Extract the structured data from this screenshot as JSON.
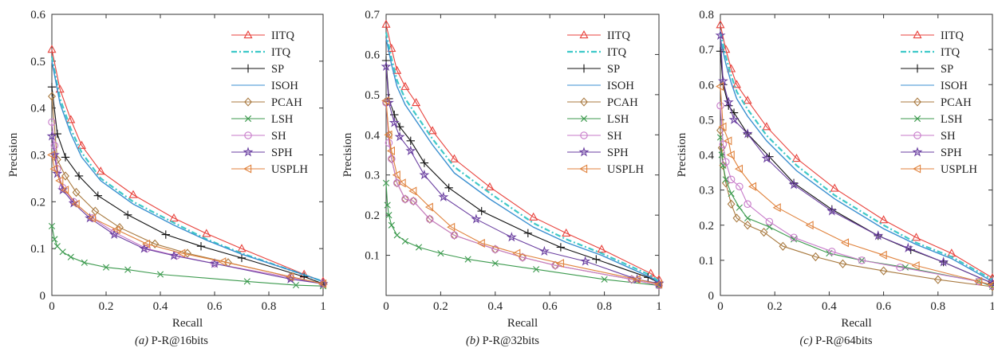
{
  "series_styles": [
    {
      "name": "IITQ",
      "color": "#e8423c",
      "marker": "triangle-up",
      "dash": ""
    },
    {
      "name": "ITQ",
      "color": "#3ec8c8",
      "marker": "none",
      "dash": "7,3,2,3"
    },
    {
      "name": "SP",
      "color": "#111111",
      "marker": "plus",
      "dash": ""
    },
    {
      "name": "ISOH",
      "color": "#3a8fd0",
      "marker": "none",
      "dash": ""
    },
    {
      "name": "PCAH",
      "color": "#a8793f",
      "marker": "diamond",
      "dash": ""
    },
    {
      "name": "LSH",
      "color": "#3c9a4e",
      "marker": "x",
      "dash": ""
    },
    {
      "name": "SH",
      "color": "#c77ac9",
      "marker": "circle",
      "dash": ""
    },
    {
      "name": "SPH",
      "color": "#6a3fa0",
      "marker": "star",
      "dash": ""
    },
    {
      "name": "USPLH",
      "color": "#e0823c",
      "marker": "triangle-left",
      "dash": ""
    }
  ],
  "chart_data": [
    {
      "type": "line",
      "caption_prefix": "(a)",
      "caption_text": "P-R@16bits",
      "xlabel": "Recall",
      "ylabel": "Precision",
      "xlim": [
        0,
        1
      ],
      "ylim": [
        0,
        0.6
      ],
      "xticks": [
        0,
        0.2,
        0.4,
        0.6,
        0.8,
        1
      ],
      "xtick_labels": [
        "0",
        "0.2",
        "0.4",
        "0.6",
        "0.8",
        "1"
      ],
      "yticks": [
        0,
        0.1,
        0.2,
        0.3,
        0.4,
        0.5,
        0.6
      ],
      "ytick_labels": [
        "0",
        "0.1",
        "0.2",
        "0.3",
        "0.4",
        "0.5",
        "0.6"
      ],
      "legend": "top-right",
      "series": [
        {
          "name": "IITQ",
          "x": [
            0,
            0.03,
            0.07,
            0.11,
            0.18,
            0.3,
            0.45,
            0.57,
            0.7,
            0.93,
            1
          ],
          "y": [
            0.525,
            0.44,
            0.375,
            0.32,
            0.265,
            0.215,
            0.165,
            0.132,
            0.1,
            0.045,
            0.03
          ]
        },
        {
          "name": "ITQ",
          "x": [
            0,
            0.03,
            0.07,
            0.11,
            0.18,
            0.3,
            0.45,
            0.57,
            0.7,
            0.9,
            1
          ],
          "y": [
            0.51,
            0.42,
            0.355,
            0.305,
            0.25,
            0.2,
            0.155,
            0.12,
            0.09,
            0.05,
            0.03
          ]
        },
        {
          "name": "SP",
          "x": [
            0,
            0.02,
            0.05,
            0.1,
            0.17,
            0.28,
            0.42,
            0.55,
            0.7,
            0.93,
            1
          ],
          "y": [
            0.445,
            0.345,
            0.295,
            0.255,
            0.213,
            0.172,
            0.13,
            0.105,
            0.08,
            0.04,
            0.025
          ]
        },
        {
          "name": "ISOH",
          "x": [
            0,
            0.03,
            0.07,
            0.11,
            0.18,
            0.3,
            0.45,
            0.57,
            0.7,
            0.9,
            1
          ],
          "y": [
            0.5,
            0.41,
            0.345,
            0.295,
            0.245,
            0.195,
            0.15,
            0.118,
            0.088,
            0.05,
            0.03
          ]
        },
        {
          "name": "PCAH",
          "x": [
            0,
            0.02,
            0.05,
            0.09,
            0.16,
            0.25,
            0.38,
            0.5,
            0.65,
            0.88,
            1
          ],
          "y": [
            0.425,
            0.29,
            0.255,
            0.22,
            0.18,
            0.145,
            0.11,
            0.09,
            0.07,
            0.04,
            0.025
          ]
        },
        {
          "name": "LSH",
          "x": [
            0,
            0.01,
            0.02,
            0.04,
            0.07,
            0.12,
            0.2,
            0.28,
            0.4,
            0.72,
            0.9,
            1
          ],
          "y": [
            0.148,
            0.12,
            0.105,
            0.093,
            0.082,
            0.07,
            0.06,
            0.055,
            0.045,
            0.03,
            0.022,
            0.02
          ]
        },
        {
          "name": "SH",
          "x": [
            0,
            0.01,
            0.02,
            0.04,
            0.08,
            0.15,
            0.23,
            0.35,
            0.46,
            0.6,
            0.88,
            1
          ],
          "y": [
            0.37,
            0.32,
            0.27,
            0.23,
            0.2,
            0.165,
            0.135,
            0.1,
            0.085,
            0.068,
            0.038,
            0.025
          ]
        },
        {
          "name": "SPH",
          "x": [
            0,
            0.01,
            0.02,
            0.04,
            0.08,
            0.14,
            0.23,
            0.34,
            0.45,
            0.6,
            0.88,
            1
          ],
          "y": [
            0.34,
            0.3,
            0.26,
            0.225,
            0.197,
            0.165,
            0.13,
            0.1,
            0.085,
            0.068,
            0.035,
            0.025
          ]
        },
        {
          "name": "USPLH",
          "x": [
            0,
            0.01,
            0.03,
            0.05,
            0.09,
            0.15,
            0.24,
            0.35,
            0.48,
            0.63,
            0.88,
            1
          ],
          "y": [
            0.3,
            0.27,
            0.245,
            0.225,
            0.195,
            0.165,
            0.14,
            0.11,
            0.09,
            0.072,
            0.04,
            0.025
          ]
        }
      ]
    },
    {
      "type": "line",
      "caption_prefix": "(b)",
      "caption_text": "P-R@32bits",
      "xlabel": "Recall",
      "ylabel": "Precision",
      "xlim": [
        0,
        1
      ],
      "ylim": [
        0,
        0.7
      ],
      "xticks": [
        0,
        0.2,
        0.4,
        0.6,
        0.8,
        1
      ],
      "xtick_labels": [
        "0",
        "0.2",
        "0.4",
        "0.6",
        "0.8",
        "1"
      ],
      "yticks": [
        0.1,
        0.2,
        0.3,
        0.4,
        0.5,
        0.6,
        0.7
      ],
      "ytick_labels": [
        "0.1",
        "0.2",
        "0.3",
        "0.4",
        "0.5",
        "0.6",
        "0.7"
      ],
      "legend": "top-right",
      "series": [
        {
          "name": "IITQ",
          "x": [
            0,
            0.02,
            0.04,
            0.07,
            0.11,
            0.17,
            0.25,
            0.38,
            0.54,
            0.66,
            0.79,
            0.97,
            1
          ],
          "y": [
            0.675,
            0.615,
            0.56,
            0.52,
            0.48,
            0.41,
            0.34,
            0.27,
            0.195,
            0.155,
            0.115,
            0.055,
            0.04
          ]
        },
        {
          "name": "ITQ",
          "x": [
            0,
            0.02,
            0.04,
            0.07,
            0.11,
            0.17,
            0.25,
            0.38,
            0.54,
            0.66,
            0.79,
            0.97,
            1
          ],
          "y": [
            0.655,
            0.59,
            0.535,
            0.49,
            0.45,
            0.39,
            0.32,
            0.255,
            0.18,
            0.14,
            0.105,
            0.05,
            0.035
          ]
        },
        {
          "name": "SP",
          "x": [
            0,
            0.01,
            0.03,
            0.05,
            0.09,
            0.14,
            0.23,
            0.35,
            0.52,
            0.64,
            0.77,
            0.96,
            1
          ],
          "y": [
            0.585,
            0.49,
            0.45,
            0.42,
            0.385,
            0.33,
            0.268,
            0.21,
            0.155,
            0.12,
            0.09,
            0.045,
            0.032
          ]
        },
        {
          "name": "ISOH",
          "x": [
            0,
            0.02,
            0.04,
            0.07,
            0.11,
            0.17,
            0.25,
            0.38,
            0.54,
            0.66,
            0.79,
            0.97,
            1
          ],
          "y": [
            0.64,
            0.575,
            0.52,
            0.475,
            0.435,
            0.375,
            0.305,
            0.24,
            0.17,
            0.132,
            0.1,
            0.045,
            0.032
          ]
        },
        {
          "name": "PCAH",
          "x": [
            0,
            0.01,
            0.02,
            0.04,
            0.07,
            0.1,
            0.16,
            0.25,
            0.4,
            0.5,
            0.62,
            0.9,
            1
          ],
          "y": [
            0.48,
            0.4,
            0.34,
            0.28,
            0.24,
            0.235,
            0.19,
            0.15,
            0.115,
            0.095,
            0.075,
            0.04,
            0.025
          ]
        },
        {
          "name": "LSH",
          "x": [
            0,
            0.005,
            0.01,
            0.02,
            0.04,
            0.07,
            0.12,
            0.2,
            0.3,
            0.4,
            0.55,
            0.8,
            1
          ],
          "y": [
            0.28,
            0.225,
            0.2,
            0.175,
            0.15,
            0.135,
            0.12,
            0.105,
            0.09,
            0.08,
            0.065,
            0.04,
            0.025
          ]
        },
        {
          "name": "SH",
          "x": [
            0,
            0.01,
            0.02,
            0.04,
            0.07,
            0.1,
            0.16,
            0.25,
            0.4,
            0.5,
            0.62,
            0.9,
            1
          ],
          "y": [
            0.48,
            0.38,
            0.34,
            0.28,
            0.24,
            0.235,
            0.19,
            0.15,
            0.115,
            0.095,
            0.075,
            0.04,
            0.025
          ]
        },
        {
          "name": "SPH",
          "x": [
            0,
            0.01,
            0.03,
            0.05,
            0.09,
            0.14,
            0.21,
            0.33,
            0.46,
            0.58,
            0.73,
            0.92,
            1
          ],
          "y": [
            0.57,
            0.48,
            0.43,
            0.395,
            0.36,
            0.3,
            0.245,
            0.19,
            0.145,
            0.11,
            0.085,
            0.04,
            0.03
          ]
        },
        {
          "name": "USPLH",
          "x": [
            0,
            0.01,
            0.02,
            0.04,
            0.06,
            0.1,
            0.16,
            0.24,
            0.35,
            0.48,
            0.64,
            0.92,
            1
          ],
          "y": [
            0.485,
            0.4,
            0.36,
            0.3,
            0.28,
            0.26,
            0.22,
            0.17,
            0.13,
            0.105,
            0.08,
            0.04,
            0.028
          ]
        }
      ]
    },
    {
      "type": "line",
      "caption_prefix": "(c)",
      "caption_text": "P-R@64bits",
      "xlabel": "Recall",
      "ylabel": "Precision",
      "xlim": [
        0,
        1
      ],
      "ylim": [
        0,
        0.8
      ],
      "xticks": [
        0,
        0.2,
        0.4,
        0.6,
        0.8,
        1
      ],
      "xtick_labels": [
        "0",
        "0.2",
        "0.4",
        "0.6",
        "0.8",
        "1"
      ],
      "yticks": [
        0,
        0.1,
        0.2,
        0.3,
        0.4,
        0.5,
        0.6,
        0.7,
        0.8
      ],
      "ytick_labels": [
        "0",
        "0.1",
        "0.2",
        "0.3",
        "0.4",
        "0.5",
        "0.6",
        "0.7",
        "0.8"
      ],
      "legend": "top-right",
      "series": [
        {
          "name": "IITQ",
          "x": [
            0,
            0.02,
            0.04,
            0.06,
            0.1,
            0.17,
            0.28,
            0.42,
            0.6,
            0.72,
            0.85,
            1
          ],
          "y": [
            0.77,
            0.7,
            0.645,
            0.6,
            0.555,
            0.48,
            0.39,
            0.305,
            0.215,
            0.165,
            0.12,
            0.05
          ]
        },
        {
          "name": "ITQ",
          "x": [
            0,
            0.02,
            0.04,
            0.06,
            0.1,
            0.17,
            0.28,
            0.42,
            0.6,
            0.72,
            0.85,
            1
          ],
          "y": [
            0.75,
            0.68,
            0.625,
            0.58,
            0.53,
            0.455,
            0.37,
            0.285,
            0.2,
            0.15,
            0.11,
            0.045
          ]
        },
        {
          "name": "SP",
          "x": [
            0,
            0.01,
            0.03,
            0.05,
            0.1,
            0.18,
            0.27,
            0.41,
            0.58,
            0.7,
            0.82,
            1
          ],
          "y": [
            0.695,
            0.6,
            0.54,
            0.52,
            0.46,
            0.395,
            0.32,
            0.245,
            0.17,
            0.13,
            0.095,
            0.035
          ]
        },
        {
          "name": "ISOH",
          "x": [
            0,
            0.02,
            0.04,
            0.06,
            0.1,
            0.17,
            0.28,
            0.42,
            0.6,
            0.72,
            0.85,
            1
          ],
          "y": [
            0.73,
            0.66,
            0.605,
            0.56,
            0.51,
            0.44,
            0.355,
            0.275,
            0.19,
            0.145,
            0.105,
            0.04
          ]
        },
        {
          "name": "PCAH",
          "x": [
            0,
            0.005,
            0.01,
            0.02,
            0.04,
            0.06,
            0.1,
            0.16,
            0.23,
            0.35,
            0.45,
            0.6,
            0.8,
            1
          ],
          "y": [
            0.47,
            0.42,
            0.37,
            0.32,
            0.26,
            0.22,
            0.2,
            0.18,
            0.14,
            0.11,
            0.09,
            0.07,
            0.045,
            0.025
          ]
        },
        {
          "name": "LSH",
          "x": [
            0,
            0.005,
            0.01,
            0.02,
            0.04,
            0.07,
            0.1,
            0.18,
            0.27,
            0.4,
            0.52,
            0.68,
            0.95,
            1
          ],
          "y": [
            0.45,
            0.4,
            0.37,
            0.33,
            0.29,
            0.25,
            0.22,
            0.195,
            0.16,
            0.12,
            0.1,
            0.08,
            0.04,
            0.025
          ]
        },
        {
          "name": "SH",
          "x": [
            0,
            0.01,
            0.02,
            0.04,
            0.07,
            0.1,
            0.18,
            0.27,
            0.41,
            0.52,
            0.66,
            0.95,
            1
          ],
          "y": [
            0.54,
            0.43,
            0.38,
            0.33,
            0.31,
            0.26,
            0.21,
            0.165,
            0.125,
            0.1,
            0.08,
            0.04,
            0.028
          ]
        },
        {
          "name": "SPH",
          "x": [
            0,
            0.01,
            0.03,
            0.05,
            0.1,
            0.17,
            0.27,
            0.41,
            0.58,
            0.69,
            0.82,
            1
          ],
          "y": [
            0.74,
            0.61,
            0.55,
            0.5,
            0.46,
            0.39,
            0.315,
            0.24,
            0.17,
            0.135,
            0.095,
            0.035
          ]
        },
        {
          "name": "USPLH",
          "x": [
            0,
            0.01,
            0.03,
            0.04,
            0.07,
            0.12,
            0.21,
            0.33,
            0.46,
            0.6,
            0.72,
            0.95,
            1
          ],
          "y": [
            0.595,
            0.48,
            0.44,
            0.4,
            0.36,
            0.31,
            0.25,
            0.2,
            0.15,
            0.115,
            0.085,
            0.04,
            0.03
          ]
        }
      ]
    }
  ]
}
